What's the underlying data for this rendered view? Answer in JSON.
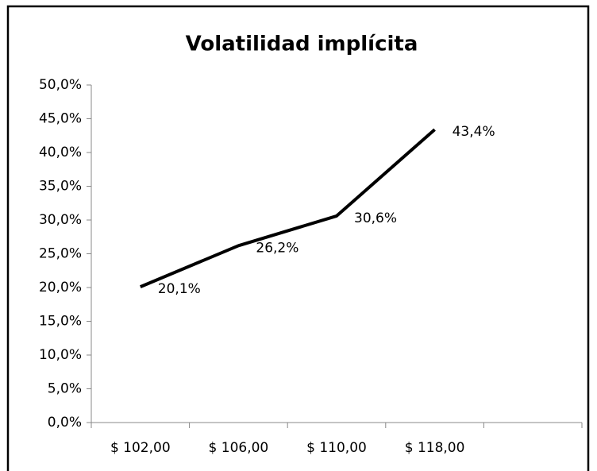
{
  "chart_data": {
    "type": "line",
    "title": "Volatilidad implícita",
    "categories": [
      "$ 102,00",
      "$ 106,00",
      "$ 110,00",
      "$ 118,00",
      null
    ],
    "series": [
      {
        "name": null,
        "color": "#000000",
        "values": [
          20.1,
          26.2,
          30.6,
          43.4,
          null
        ],
        "value_labels": [
          "20,1%",
          "26,2%",
          "30,6%",
          "43,4%",
          null
        ]
      }
    ],
    "ylim": [
      0,
      50
    ],
    "yticks": [
      {
        "value": 0,
        "label": "0,0%"
      },
      {
        "value": 5,
        "label": "5,0%"
      },
      {
        "value": 10,
        "label": "10,0%"
      },
      {
        "value": 15,
        "label": "15,0%"
      },
      {
        "value": 20,
        "label": "20,0%"
      },
      {
        "value": 25,
        "label": "25,0%"
      },
      {
        "value": 30,
        "label": "30,0%"
      },
      {
        "value": 35,
        "label": "35,0%"
      },
      {
        "value": 40,
        "label": "40,0%"
      },
      {
        "value": 45,
        "label": "45,0%"
      },
      {
        "value": 50,
        "label": "50,0%"
      }
    ],
    "grid": false
  }
}
